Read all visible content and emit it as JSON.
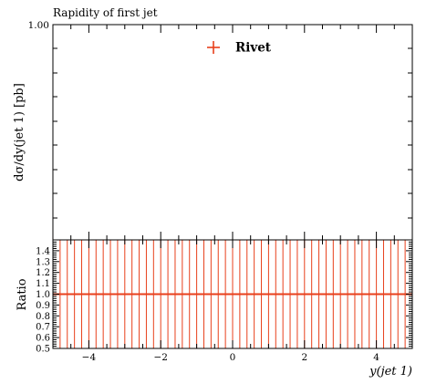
{
  "chart_data": [
    {
      "type": "scatter",
      "title": "Rapidity of first jet",
      "ylabel": "dσ/dy(jet 1) [pb]",
      "xlim": [
        -5,
        5
      ],
      "y_tick_labels": [
        "1.00"
      ],
      "legend": {
        "placement": "top-center",
        "entries": [
          "Rivet"
        ]
      },
      "series": [
        {
          "name": "Rivet",
          "color": "#e8401c",
          "points": []
        }
      ]
    },
    {
      "type": "line",
      "ylabel": "Ratio",
      "xlabel": "y(jet 1)",
      "xlim": [
        -5,
        5
      ],
      "ylim": [
        0.5,
        1.5
      ],
      "x_ticks": [
        -4,
        -2,
        0,
        2,
        4
      ],
      "x_tick_labels": [
        "−4",
        "−2",
        "0",
        "2",
        "4"
      ],
      "y_ticks": [
        0.5,
        0.6,
        0.7,
        0.8,
        0.9,
        1.0,
        1.1,
        1.2,
        1.3,
        1.4
      ],
      "y_tick_labels": [
        "0.5",
        "0.6",
        "0.7",
        "0.8",
        "0.9",
        "1.0",
        "1.1",
        "1.2",
        "1.3",
        "1.4"
      ],
      "reference_value": 1.0,
      "bin_edges": [
        -5.0,
        -4.8,
        -4.6,
        -4.4,
        -4.2,
        -4.0,
        -3.8,
        -3.6,
        -3.4,
        -3.2,
        -3.0,
        -2.8,
        -2.6,
        -2.4,
        -2.2,
        -2.0,
        -1.8,
        -1.6,
        -1.4,
        -1.2,
        -1.0,
        -0.8,
        -0.6,
        -0.4,
        -0.2,
        0.0,
        0.2,
        0.4,
        0.6,
        0.8,
        1.0,
        1.2,
        1.4,
        1.6,
        1.8,
        2.0,
        2.2,
        2.4,
        2.6,
        2.8,
        3.0,
        3.2,
        3.4,
        3.6,
        3.8,
        4.0,
        4.2,
        4.4,
        4.6,
        4.8,
        5.0
      ],
      "series": [
        {
          "name": "Rivet",
          "color": "#e8401c"
        }
      ]
    }
  ]
}
